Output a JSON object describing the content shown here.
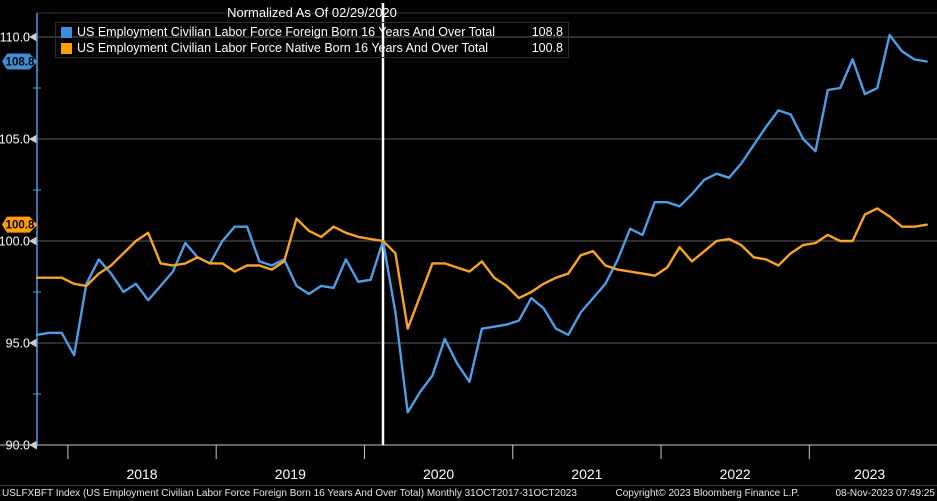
{
  "header": {
    "title": "Normalized As Of 02/29/2020"
  },
  "legend": [
    {
      "label": "US Employment Civilian Labor Force Foreign Born 16 Years And Over Total",
      "value": "108.8",
      "color": "#3d8ed6"
    },
    {
      "label": "US Employment Civilian Labor Force Native Born 16 Years And Over Total",
      "value": "100.8",
      "color": "#ffa000"
    }
  ],
  "badges": [
    {
      "text": "108.8",
      "value": 108.8,
      "color": "#3d8ed6"
    },
    {
      "text": "100.8",
      "value": 100.8,
      "color": "#ffa000"
    }
  ],
  "footer": {
    "left": "USLFXBFT Index (US Employment Civilian Labor Force Foreign Born 16 Years And Over Total)  Monthly 31OCT2017-31OCT2023",
    "copyright": "Copyright© 2023 Bloomberg Finance L.P.",
    "timestamp": "08-Nov-2023 07:49:25"
  },
  "colors": {
    "background": "#000000",
    "gridline": "#5c5c5c",
    "axis": "#4f9ee0",
    "axis_text": "#ffffff",
    "normalization_line": "#ffffff",
    "x_axis_line": "#c8c8c8",
    "foreign_born_line": "#4f9de5",
    "native_born_line": "#f7a428"
  },
  "chart_data": {
    "type": "line",
    "title": "Normalized As Of 02/29/2020",
    "x_frequency": "monthly",
    "x_range_label": "31OCT2017-31OCT2023",
    "normalization_month": "2020-02",
    "grid": "horizontal",
    "legend_position": "top-left",
    "ylim": [
      90,
      111
    ],
    "y_ticks": [
      110.0,
      105.0,
      100.0,
      95.0,
      90.0
    ],
    "y_minor_ticks": [
      107.5,
      102.5,
      97.5,
      92.5
    ],
    "x_tick_years": [
      "2018",
      "2019",
      "2020",
      "2021",
      "2022",
      "2023"
    ],
    "months": [
      "2017-10",
      "2017-11",
      "2017-12",
      "2018-01",
      "2018-02",
      "2018-03",
      "2018-04",
      "2018-05",
      "2018-06",
      "2018-07",
      "2018-08",
      "2018-09",
      "2018-10",
      "2018-11",
      "2018-12",
      "2019-01",
      "2019-02",
      "2019-03",
      "2019-04",
      "2019-05",
      "2019-06",
      "2019-07",
      "2019-08",
      "2019-09",
      "2019-10",
      "2019-11",
      "2019-12",
      "2020-01",
      "2020-02",
      "2020-03",
      "2020-04",
      "2020-05",
      "2020-06",
      "2020-07",
      "2020-08",
      "2020-09",
      "2020-10",
      "2020-11",
      "2020-12",
      "2021-01",
      "2021-02",
      "2021-03",
      "2021-04",
      "2021-05",
      "2021-06",
      "2021-07",
      "2021-08",
      "2021-09",
      "2021-10",
      "2021-11",
      "2021-12",
      "2022-01",
      "2022-02",
      "2022-03",
      "2022-04",
      "2022-05",
      "2022-06",
      "2022-07",
      "2022-08",
      "2022-09",
      "2022-10",
      "2022-11",
      "2022-12",
      "2023-01",
      "2023-02",
      "2023-03",
      "2023-04",
      "2023-05",
      "2023-06",
      "2023-07",
      "2023-08",
      "2023-09",
      "2023-10"
    ],
    "series": [
      {
        "name": "US Employment Civilian Labor Force Foreign Born 16 Years And Over Total",
        "ticker": "USLFXBFT Index",
        "color": "#4f9de5",
        "last_value": 108.8,
        "values": [
          95.4,
          95.5,
          95.5,
          94.4,
          97.9,
          99.1,
          98.4,
          97.5,
          97.9,
          97.1,
          97.8,
          98.5,
          99.9,
          99.2,
          98.9,
          100.0,
          100.7,
          100.7,
          99.0,
          98.8,
          99.1,
          97.8,
          97.4,
          97.8,
          97.7,
          99.1,
          98.0,
          98.1,
          100.0,
          96.5,
          91.6,
          92.6,
          93.4,
          95.2,
          94.0,
          93.1,
          95.7,
          95.8,
          95.9,
          96.1,
          97.2,
          96.7,
          95.7,
          95.4,
          96.5,
          97.2,
          97.9,
          99.1,
          100.6,
          100.3,
          101.9,
          101.9,
          101.7,
          102.3,
          103.0,
          103.3,
          103.1,
          103.8,
          104.7,
          105.6,
          106.4,
          106.2,
          105.0,
          104.4,
          107.4,
          107.5,
          108.9,
          107.2,
          107.5,
          110.1,
          109.3,
          108.9,
          108.8
        ]
      },
      {
        "name": "US Employment Civilian Labor Force Native Born 16 Years And Over Total",
        "color": "#f7a428",
        "last_value": 100.8,
        "values": [
          98.2,
          98.2,
          98.2,
          97.9,
          97.8,
          98.4,
          98.8,
          99.4,
          100.0,
          100.4,
          98.9,
          98.8,
          98.9,
          99.2,
          98.9,
          98.9,
          98.5,
          98.8,
          98.8,
          98.6,
          99.0,
          101.1,
          100.5,
          100.2,
          100.7,
          100.4,
          100.2,
          100.1,
          100.0,
          99.4,
          95.7,
          97.3,
          98.9,
          98.9,
          98.7,
          98.5,
          99.0,
          98.2,
          97.8,
          97.2,
          97.5,
          97.9,
          98.2,
          98.4,
          99.3,
          99.5,
          98.8,
          98.6,
          98.5,
          98.4,
          98.3,
          98.7,
          99.7,
          99.0,
          99.5,
          100.0,
          100.1,
          99.8,
          99.2,
          99.1,
          98.8,
          99.4,
          99.8,
          99.9,
          100.3,
          100.0,
          100.0,
          101.3,
          101.6,
          101.2,
          100.7,
          100.7,
          100.8
        ]
      }
    ]
  }
}
